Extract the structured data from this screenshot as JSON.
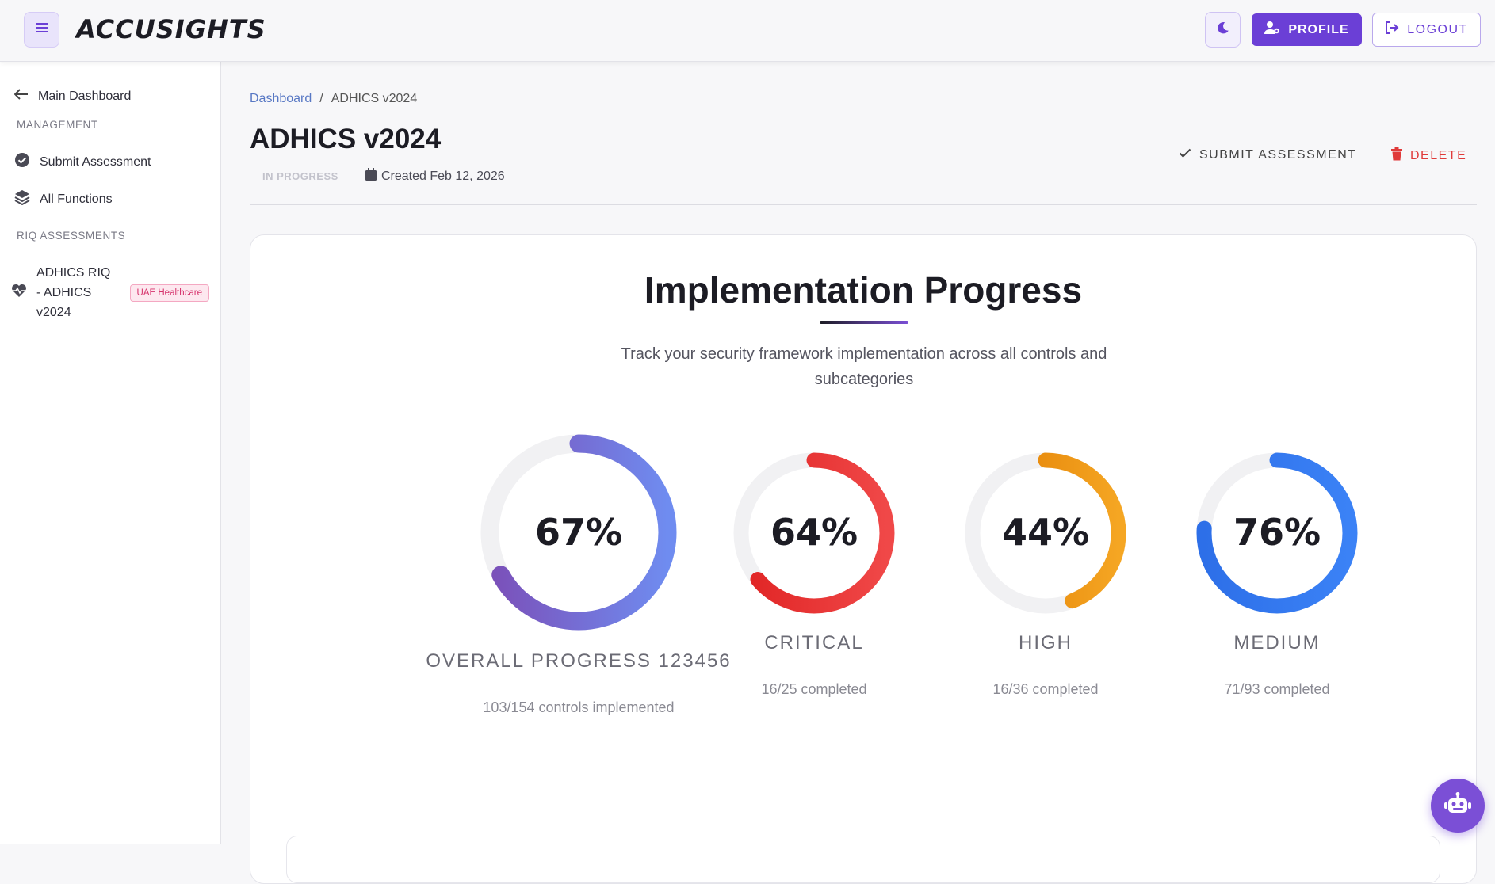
{
  "header": {
    "logo": "ACCUSIGHTS",
    "menu_icon": "hamburger-icon",
    "theme_icon": "moon-icon",
    "profile_label": "PROFILE",
    "logout_label": "LOGOUT",
    "accent": "#6b3fd6"
  },
  "sidebar": {
    "back_label": "Main Dashboard",
    "management_heading": "MANAGEMENT",
    "items": [
      {
        "label": "Submit Assessment",
        "icon": "check-circle-icon"
      },
      {
        "label": "All Functions",
        "icon": "layers-icon"
      }
    ],
    "riq_heading": "RIQ ASSESSMENTS",
    "riq_item": {
      "label": "ADHICS RIQ - ADHICS v2024",
      "badge": "UAE Healthcare",
      "icon": "heart-pulse-icon"
    }
  },
  "breadcrumb": {
    "home": "Dashboard",
    "separator": "/",
    "current": "ADHICS v2024"
  },
  "page": {
    "title": "ADHICS v2024",
    "status": "IN PROGRESS",
    "created": "Created Feb 12, 2026",
    "submit_label": "SUBMIT ASSESSMENT",
    "delete_label": "DELETE"
  },
  "progress": {
    "title": "Implementation Progress",
    "subtitle": "Track your security framework implementation across all controls and subcategories",
    "overall": {
      "percent_text": "67%",
      "value": 0.67,
      "label": "OVERALL PROGRESS 123456",
      "sub": "103/154 controls implemented",
      "colors": [
        "#7b4fb8",
        "#6f8cf0"
      ]
    },
    "critical": {
      "percent_text": "64%",
      "value": 0.64,
      "label": "CRITICAL",
      "sub": "16/25 completed",
      "colors": [
        "#e02424",
        "#f04848"
      ]
    },
    "high": {
      "percent_text": "44%",
      "value": 0.44,
      "label": "HIGH",
      "sub": "16/36 completed",
      "colors": [
        "#e07a00",
        "#f5a623"
      ]
    },
    "medium": {
      "percent_text": "76%",
      "value": 0.76,
      "label": "MEDIUM",
      "sub": "71/93 completed",
      "colors": [
        "#2d6fe8",
        "#3b82f6"
      ]
    }
  },
  "assistant": {
    "icon": "robot-icon"
  }
}
